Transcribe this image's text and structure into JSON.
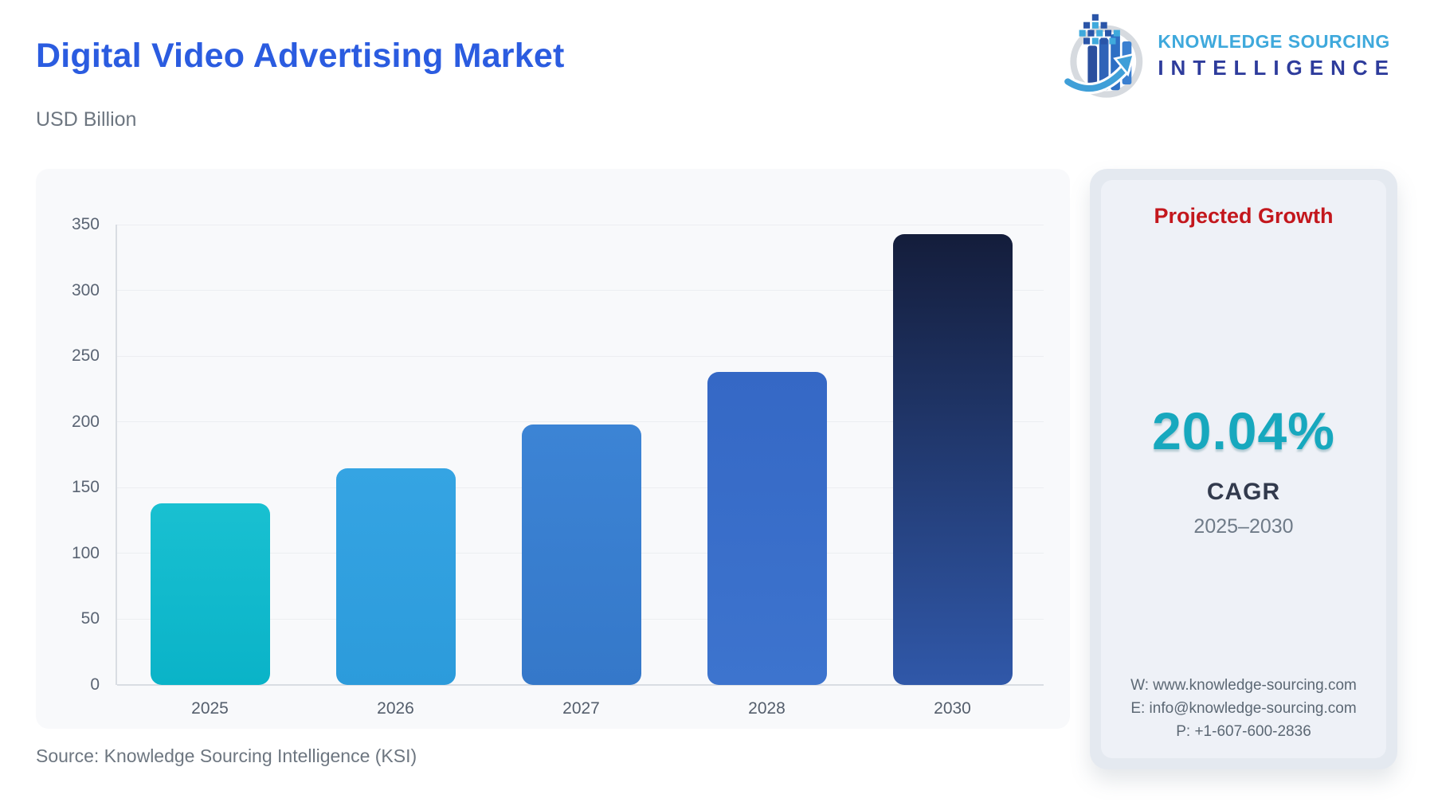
{
  "header": {
    "title": "Digital Video Advertising Market",
    "subtitle": "USD Billion"
  },
  "logo": {
    "line1": "KNOWLEDGE SOURCING",
    "line2": "INTELLIGENCE"
  },
  "chart_data": {
    "type": "bar",
    "title": "Digital Video Advertising Market",
    "ylabel": "USD Billion",
    "categories": [
      "2025",
      "2026",
      "2027",
      "2028",
      "2030"
    ],
    "values": [
      138,
      165,
      198,
      238,
      343
    ],
    "ylim": [
      0,
      350
    ],
    "yticks": [
      0,
      50,
      100,
      150,
      200,
      250,
      300,
      350
    ],
    "grid": true,
    "legend": false,
    "bar_colors": [
      {
        "top": "#19c0d1",
        "bottom": "#0ab3c8"
      },
      {
        "top": "#35a4e3",
        "bottom": "#2c9bdb"
      },
      {
        "top": "#3c84d5",
        "bottom": "#3578c9"
      },
      {
        "top": "#3568c5",
        "bottom": "#3d74ce"
      },
      {
        "top": "#141d3b",
        "bottom": "#3058a9"
      }
    ]
  },
  "side_panel": {
    "heading": "Projected Growth",
    "cagr_value": "20.04%",
    "cagr_label": "CAGR",
    "period": "2025–2030",
    "contacts": [
      "W: www.knowledge-sourcing.com",
      "E: info@knowledge-sourcing.com",
      "P: +1-607-600-2836"
    ]
  },
  "footer": {
    "source": "Source: Knowledge Sourcing Intelligence (KSI)"
  },
  "colors": {
    "title_blue": "#2b5ce0",
    "heading_red": "#c3171d",
    "accent_teal": "#17a8be",
    "logo_light_blue": "#3fa9dc",
    "logo_navy": "#2e3c9c"
  }
}
